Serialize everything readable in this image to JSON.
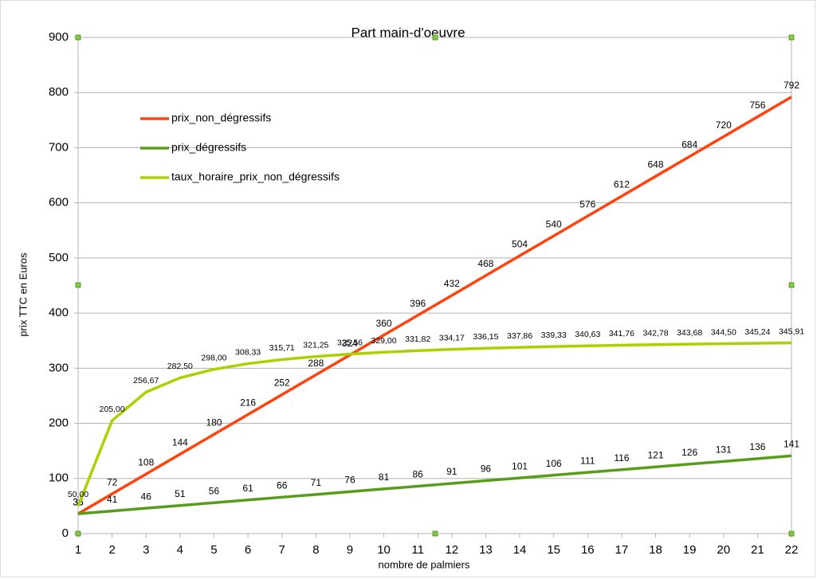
{
  "chart_data": {
    "type": "line",
    "title": "Part main-d'oeuvre",
    "x_label": "nombre de palmiers",
    "y_label": "prix TTC en Euros",
    "x": [
      1,
      2,
      3,
      4,
      5,
      6,
      7,
      8,
      9,
      10,
      11,
      12,
      13,
      14,
      15,
      16,
      17,
      18,
      19,
      20,
      21,
      22
    ],
    "xlim": [
      1,
      22
    ],
    "xticks": [
      1,
      2,
      3,
      4,
      5,
      6,
      7,
      8,
      9,
      10,
      11,
      12,
      13,
      14,
      15,
      16,
      17,
      18,
      19,
      20,
      21,
      22
    ],
    "ylim": [
      0,
      900
    ],
    "yticks": [
      0,
      100,
      200,
      300,
      400,
      500,
      600,
      700,
      800,
      900
    ],
    "grid": true,
    "legend": "upper left",
    "series": [
      {
        "name": "prix_non_dégressifs",
        "color": "#ff420e",
        "values": [
          36,
          72,
          108,
          144,
          180,
          216,
          252,
          288,
          324,
          360,
          396,
          432,
          468,
          504,
          540,
          576,
          612,
          648,
          684,
          720,
          756,
          792
        ]
      },
      {
        "name": "prix_dégressifs",
        "color": "#579d1c",
        "values": [
          36,
          41,
          46,
          51,
          56,
          61,
          66,
          71,
          76,
          81,
          86,
          91,
          96,
          101,
          106,
          111,
          116,
          121,
          126,
          131,
          136,
          141
        ]
      },
      {
        "name": "taux_horaire_prix_non_dégressifs",
        "color": "#aecf00",
        "values": [
          50,
          205,
          256.67,
          282.5,
          298,
          308.33,
          315.71,
          321.25,
          325.56,
          329,
          331.82,
          334.17,
          336.15,
          337.86,
          339.33,
          340.63,
          341.76,
          342.78,
          343.68,
          344.5,
          345.24,
          345.91
        ],
        "value_labels": [
          "50,00",
          "205,00",
          "256,67",
          "282,50",
          "298,00",
          "308,33",
          "315,71",
          "321,25",
          "325,56",
          "329,00",
          "331,82",
          "334,17",
          "336,15",
          "337,86",
          "339,33",
          "340,63",
          "341,76",
          "342,78",
          "343,68",
          "344,50",
          "345,24",
          "345,91"
        ]
      }
    ]
  }
}
